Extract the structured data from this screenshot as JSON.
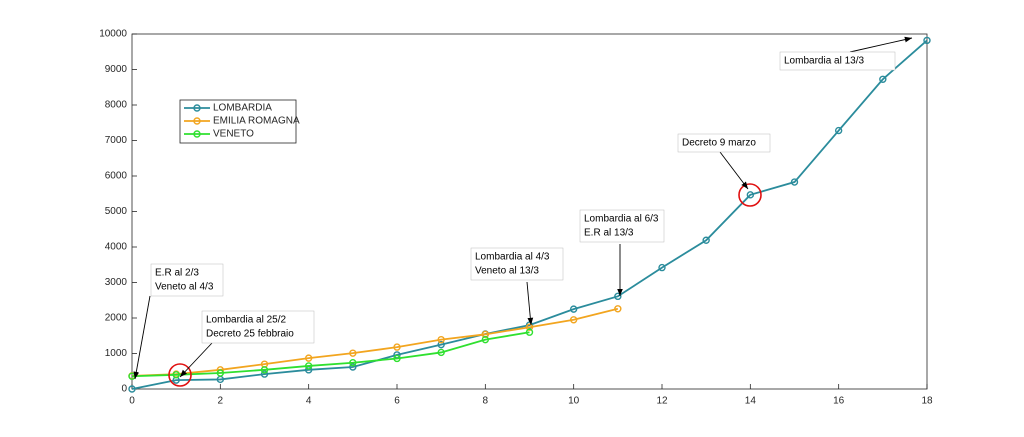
{
  "chart_data": {
    "type": "line",
    "x": [
      0,
      1,
      2,
      3,
      4,
      5,
      6,
      7,
      8,
      9,
      10,
      11,
      12,
      13,
      14,
      15,
      16,
      17,
      18
    ],
    "series": [
      {
        "name": "LOMBARDIA",
        "color": "#2b8c9c",
        "values": [
          0,
          250,
          270,
          420,
          540,
          620,
          960,
          1250,
          1550,
          1800,
          2250,
          2610,
          3420,
          4190,
          5470,
          5830,
          7280,
          8725,
          9820
        ]
      },
      {
        "name": "EMILIA ROMAGNA",
        "color": "#f2a51f",
        "values": [
          370,
          420,
          540,
          700,
          870,
          1010,
          1180,
          1390,
          1540,
          1740,
          1950,
          2260,
          null,
          null,
          null,
          null,
          null,
          null,
          null
        ]
      },
      {
        "name": "VENETO",
        "color": "#2fe02f",
        "values": [
          360,
          400,
          450,
          540,
          650,
          740,
          860,
          1030,
          1390,
          1600,
          null,
          null,
          null,
          null,
          null,
          null,
          null,
          null,
          null
        ]
      }
    ],
    "xlim": [
      0,
      18
    ],
    "xticks": [
      0,
      2,
      4,
      6,
      8,
      10,
      12,
      14,
      16,
      18
    ],
    "ylim": [
      0,
      10000
    ],
    "yticks": [
      0,
      1000,
      2000,
      3000,
      4000,
      5000,
      6000,
      7000,
      8000,
      9000,
      10000
    ],
    "legend": "upper left",
    "annotations": [
      {
        "lines": [
          "Lombardia al 13/3"
        ]
      },
      {
        "lines": [
          "Decreto 9 marzo"
        ]
      },
      {
        "lines": [
          "Lombardia al 6/3",
          "E.R al 13/3"
        ]
      },
      {
        "lines": [
          "Lombardia al 4/3",
          "Veneto al 13/3"
        ]
      },
      {
        "lines": [
          "Lombardia al 25/2",
          "Decreto 25 febbraio"
        ]
      },
      {
        "lines": [
          "E.R al 2/3",
          "Veneto al 4/3"
        ]
      }
    ]
  }
}
